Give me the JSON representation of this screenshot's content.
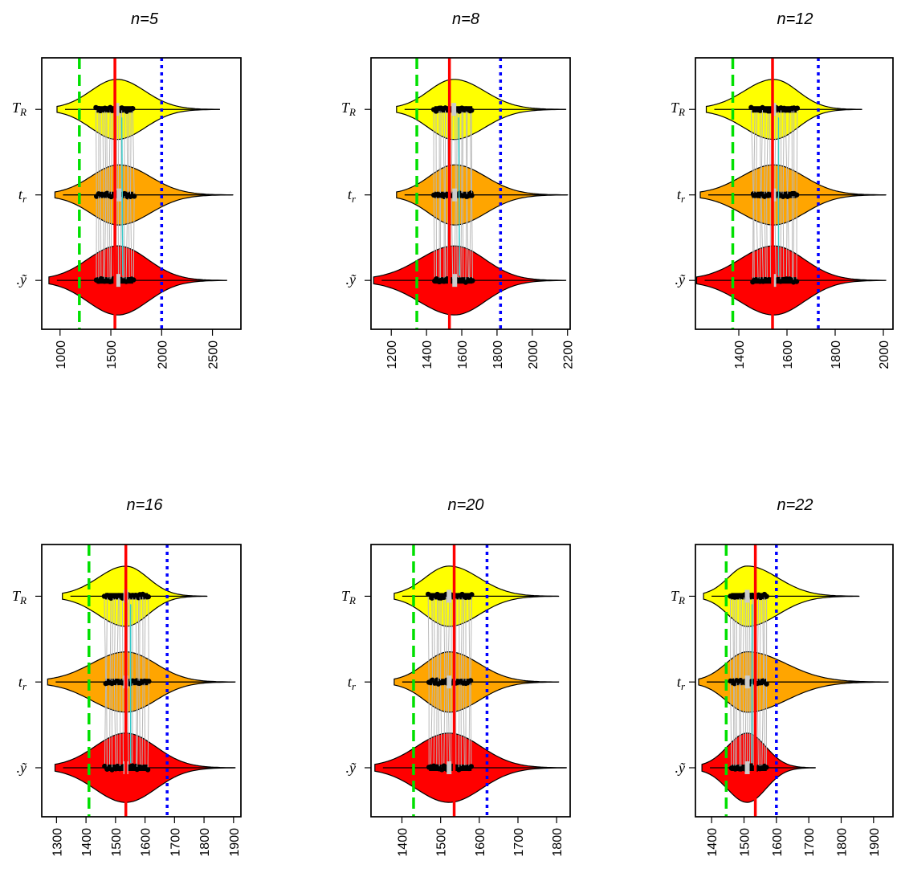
{
  "chart_data": [
    {
      "type": "violin",
      "title": "n=5",
      "categories": [
        "T_R",
        "t_r",
        "ỹ"
      ],
      "xticks": [
        1000,
        1500,
        2000,
        2500
      ],
      "xlim": [
        820,
        2780
      ],
      "ref_lines": {
        "green_dashed": 1190,
        "red_solid": 1540,
        "blue_dotted": 2000
      },
      "series": [
        {
          "category": "T_R",
          "color": "#ffff00",
          "range": [
            970,
            2570
          ],
          "box": [
            1360,
            1720
          ],
          "median": 1560
        },
        {
          "category": "t_r",
          "color": "#ffa500",
          "range": [
            950,
            2700
          ],
          "box": [
            1360,
            1720
          ],
          "median": 1580
        },
        {
          "category": "ỹ",
          "color": "#ff0000",
          "range": [
            890,
            2640
          ],
          "box": [
            1360,
            1720
          ],
          "median": 1570
        }
      ]
    },
    {
      "type": "violin",
      "title": "n=8",
      "categories": [
        "T_R",
        "t_r",
        "ỹ"
      ],
      "xticks": [
        1200,
        1400,
        1600,
        1800,
        2000,
        2200
      ],
      "xlim": [
        1085,
        2215
      ],
      "ref_lines": {
        "green_dashed": 1345,
        "red_solid": 1530,
        "blue_dotted": 1820
      },
      "series": [
        {
          "category": "T_R",
          "color": "#ffff00",
          "range": [
            1230,
            2190
          ],
          "box": [
            1445,
            1660
          ],
          "median": 1555
        },
        {
          "category": "t_r",
          "color": "#ffa500",
          "range": [
            1230,
            2200
          ],
          "box": [
            1445,
            1660
          ],
          "median": 1560
        },
        {
          "category": "ỹ",
          "color": "#ff0000",
          "range": [
            1100,
            2190
          ],
          "box": [
            1445,
            1660
          ],
          "median": 1560
        }
      ]
    },
    {
      "type": "violin",
      "title": "n=12",
      "categories": [
        "T_R",
        "t_r",
        "ỹ"
      ],
      "xticks": [
        1400,
        1600,
        1800,
        2000
      ],
      "xlim": [
        1220,
        2040
      ],
      "ref_lines": {
        "green_dashed": 1375,
        "red_solid": 1540,
        "blue_dotted": 1730
      },
      "series": [
        {
          "category": "T_R",
          "color": "#ffff00",
          "range": [
            1265,
            1910
          ],
          "box": [
            1455,
            1640
          ],
          "median": 1545
        },
        {
          "category": "t_r",
          "color": "#ffa500",
          "range": [
            1240,
            2010
          ],
          "box": [
            1455,
            1640
          ],
          "median": 1545
        },
        {
          "category": "ỹ",
          "color": "#ff0000",
          "range": [
            1225,
            2010
          ],
          "box": [
            1455,
            1640
          ],
          "median": 1545
        }
      ]
    },
    {
      "type": "violin",
      "title": "n=16",
      "categories": [
        "T_R",
        "t_r",
        "ỹ"
      ],
      "xticks": [
        1300,
        1400,
        1500,
        1600,
        1700,
        1800,
        1900
      ],
      "xlim": [
        1250,
        1925
      ],
      "ref_lines": {
        "green_dashed": 1410,
        "red_solid": 1535,
        "blue_dotted": 1675
      },
      "series": [
        {
          "category": "T_R",
          "color": "#ffff00",
          "range": [
            1320,
            1810
          ],
          "box": [
            1465,
            1610
          ],
          "median": 1535
        },
        {
          "category": "t_r",
          "color": "#ffa500",
          "range": [
            1270,
            1905
          ],
          "box": [
            1465,
            1610
          ],
          "median": 1535
        },
        {
          "category": "ỹ",
          "color": "#ff0000",
          "range": [
            1295,
            1905
          ],
          "box": [
            1465,
            1610
          ],
          "median": 1535
        }
      ]
    },
    {
      "type": "violin",
      "title": "n=20",
      "categories": [
        "T_R",
        "t_r",
        "ỹ"
      ],
      "xticks": [
        1400,
        1500,
        1600,
        1700,
        1800
      ],
      "xlim": [
        1320,
        1835
      ],
      "ref_lines": {
        "green_dashed": 1430,
        "red_solid": 1535,
        "blue_dotted": 1620
      },
      "series": [
        {
          "category": "T_R",
          "color": "#ffff00",
          "range": [
            1380,
            1805
          ],
          "box": [
            1470,
            1580
          ],
          "median": 1522
        },
        {
          "category": "t_r",
          "color": "#ffa500",
          "range": [
            1380,
            1805
          ],
          "box": [
            1470,
            1580
          ],
          "median": 1522
        },
        {
          "category": "ỹ",
          "color": "#ff0000",
          "range": [
            1330,
            1825
          ],
          "box": [
            1470,
            1580
          ],
          "median": 1522
        }
      ]
    },
    {
      "type": "violin",
      "title": "n=22",
      "categories": [
        "T_R",
        "t_r",
        "ỹ"
      ],
      "xticks": [
        1400,
        1500,
        1600,
        1700,
        1800,
        1900
      ],
      "xlim": [
        1350,
        1960
      ],
      "ref_lines": {
        "green_dashed": 1445,
        "red_solid": 1535,
        "blue_dotted": 1600
      },
      "series": [
        {
          "category": "T_R",
          "color": "#ffff00",
          "range": [
            1375,
            1855
          ],
          "box": [
            1460,
            1570
          ],
          "median": 1510
        },
        {
          "category": "t_r",
          "color": "#ffa500",
          "range": [
            1360,
            1945
          ],
          "box": [
            1460,
            1570
          ],
          "median": 1510
        },
        {
          "category": "ỹ",
          "color": "#ff0000",
          "range": [
            1370,
            1720
          ],
          "box": [
            1460,
            1570
          ],
          "median": 1510
        }
      ]
    }
  ],
  "labels": {
    "T_R": {
      "main": "T",
      "sub": "R"
    },
    "t_r": {
      "main": "t",
      "sub": "r"
    },
    "y": {
      "main": ".ỹ"
    }
  }
}
